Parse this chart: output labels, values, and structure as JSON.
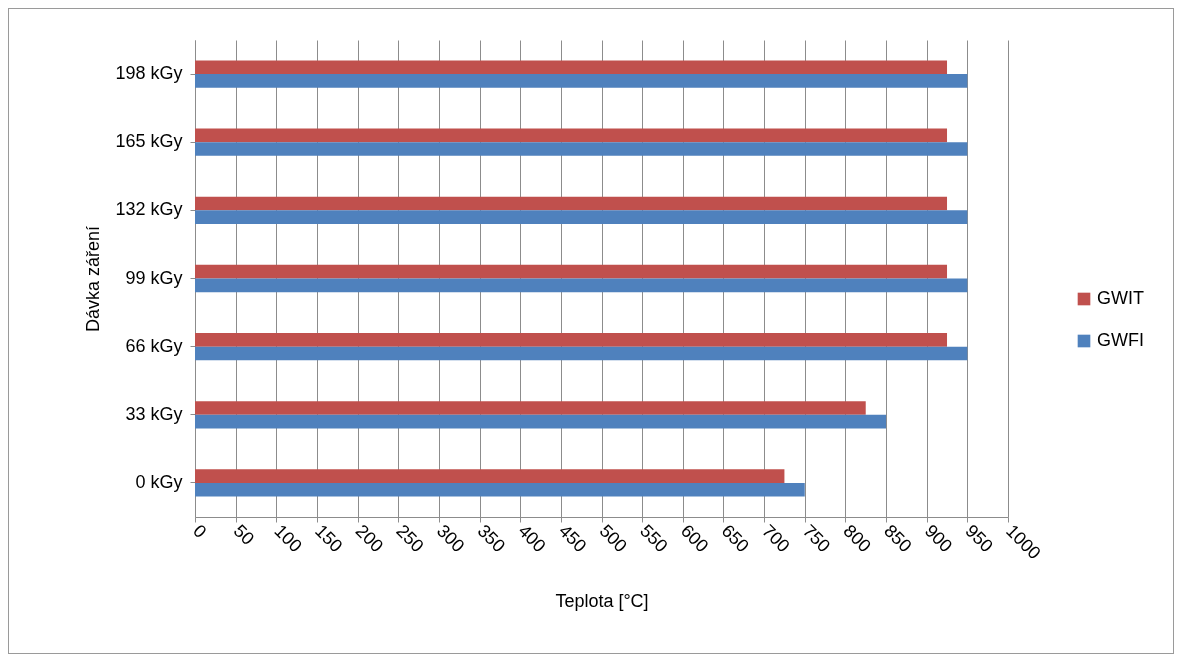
{
  "chart_data": {
    "type": "bar",
    "orientation": "horizontal",
    "xlabel": "Teplota [°C]",
    "ylabel": "Dávka záření",
    "categories": [
      "198 kGy",
      "165 kGy",
      "132 kGy",
      "99 kGy",
      "66 kGy",
      "33 kGy",
      "0 kGy"
    ],
    "series": [
      {
        "name": "GWIT",
        "color": "#c0504d",
        "values": [
          925,
          925,
          925,
          925,
          925,
          825,
          725
        ]
      },
      {
        "name": "GWFI",
        "color": "#4f81bd",
        "values": [
          950,
          950,
          950,
          950,
          950,
          850,
          750
        ]
      }
    ],
    "xlim": [
      0,
      1000
    ],
    "xticks": [
      0,
      50,
      100,
      150,
      200,
      250,
      300,
      350,
      400,
      450,
      500,
      550,
      600,
      650,
      700,
      750,
      800,
      850,
      900,
      950,
      1000
    ],
    "grid": "x",
    "legend": "right"
  }
}
